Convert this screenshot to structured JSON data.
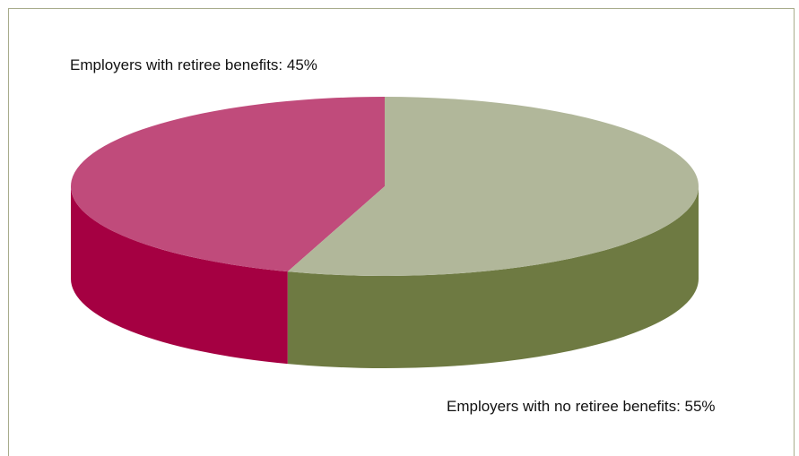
{
  "chart_data": {
    "type": "pie",
    "categories": [
      "Employers with retiree benefits",
      "Employers with no retiree benefits"
    ],
    "values": [
      45,
      55
    ],
    "labels": [
      "Employers with retiree benefits: 45%",
      "Employers with no retiree benefits: 55%"
    ],
    "colors": {
      "retiree_top": "#c04b7b",
      "retiree_side": "#a50042",
      "no_retiree_top": "#b1b79a",
      "no_retiree_side": "#6e7a42"
    },
    "style": "3d"
  }
}
